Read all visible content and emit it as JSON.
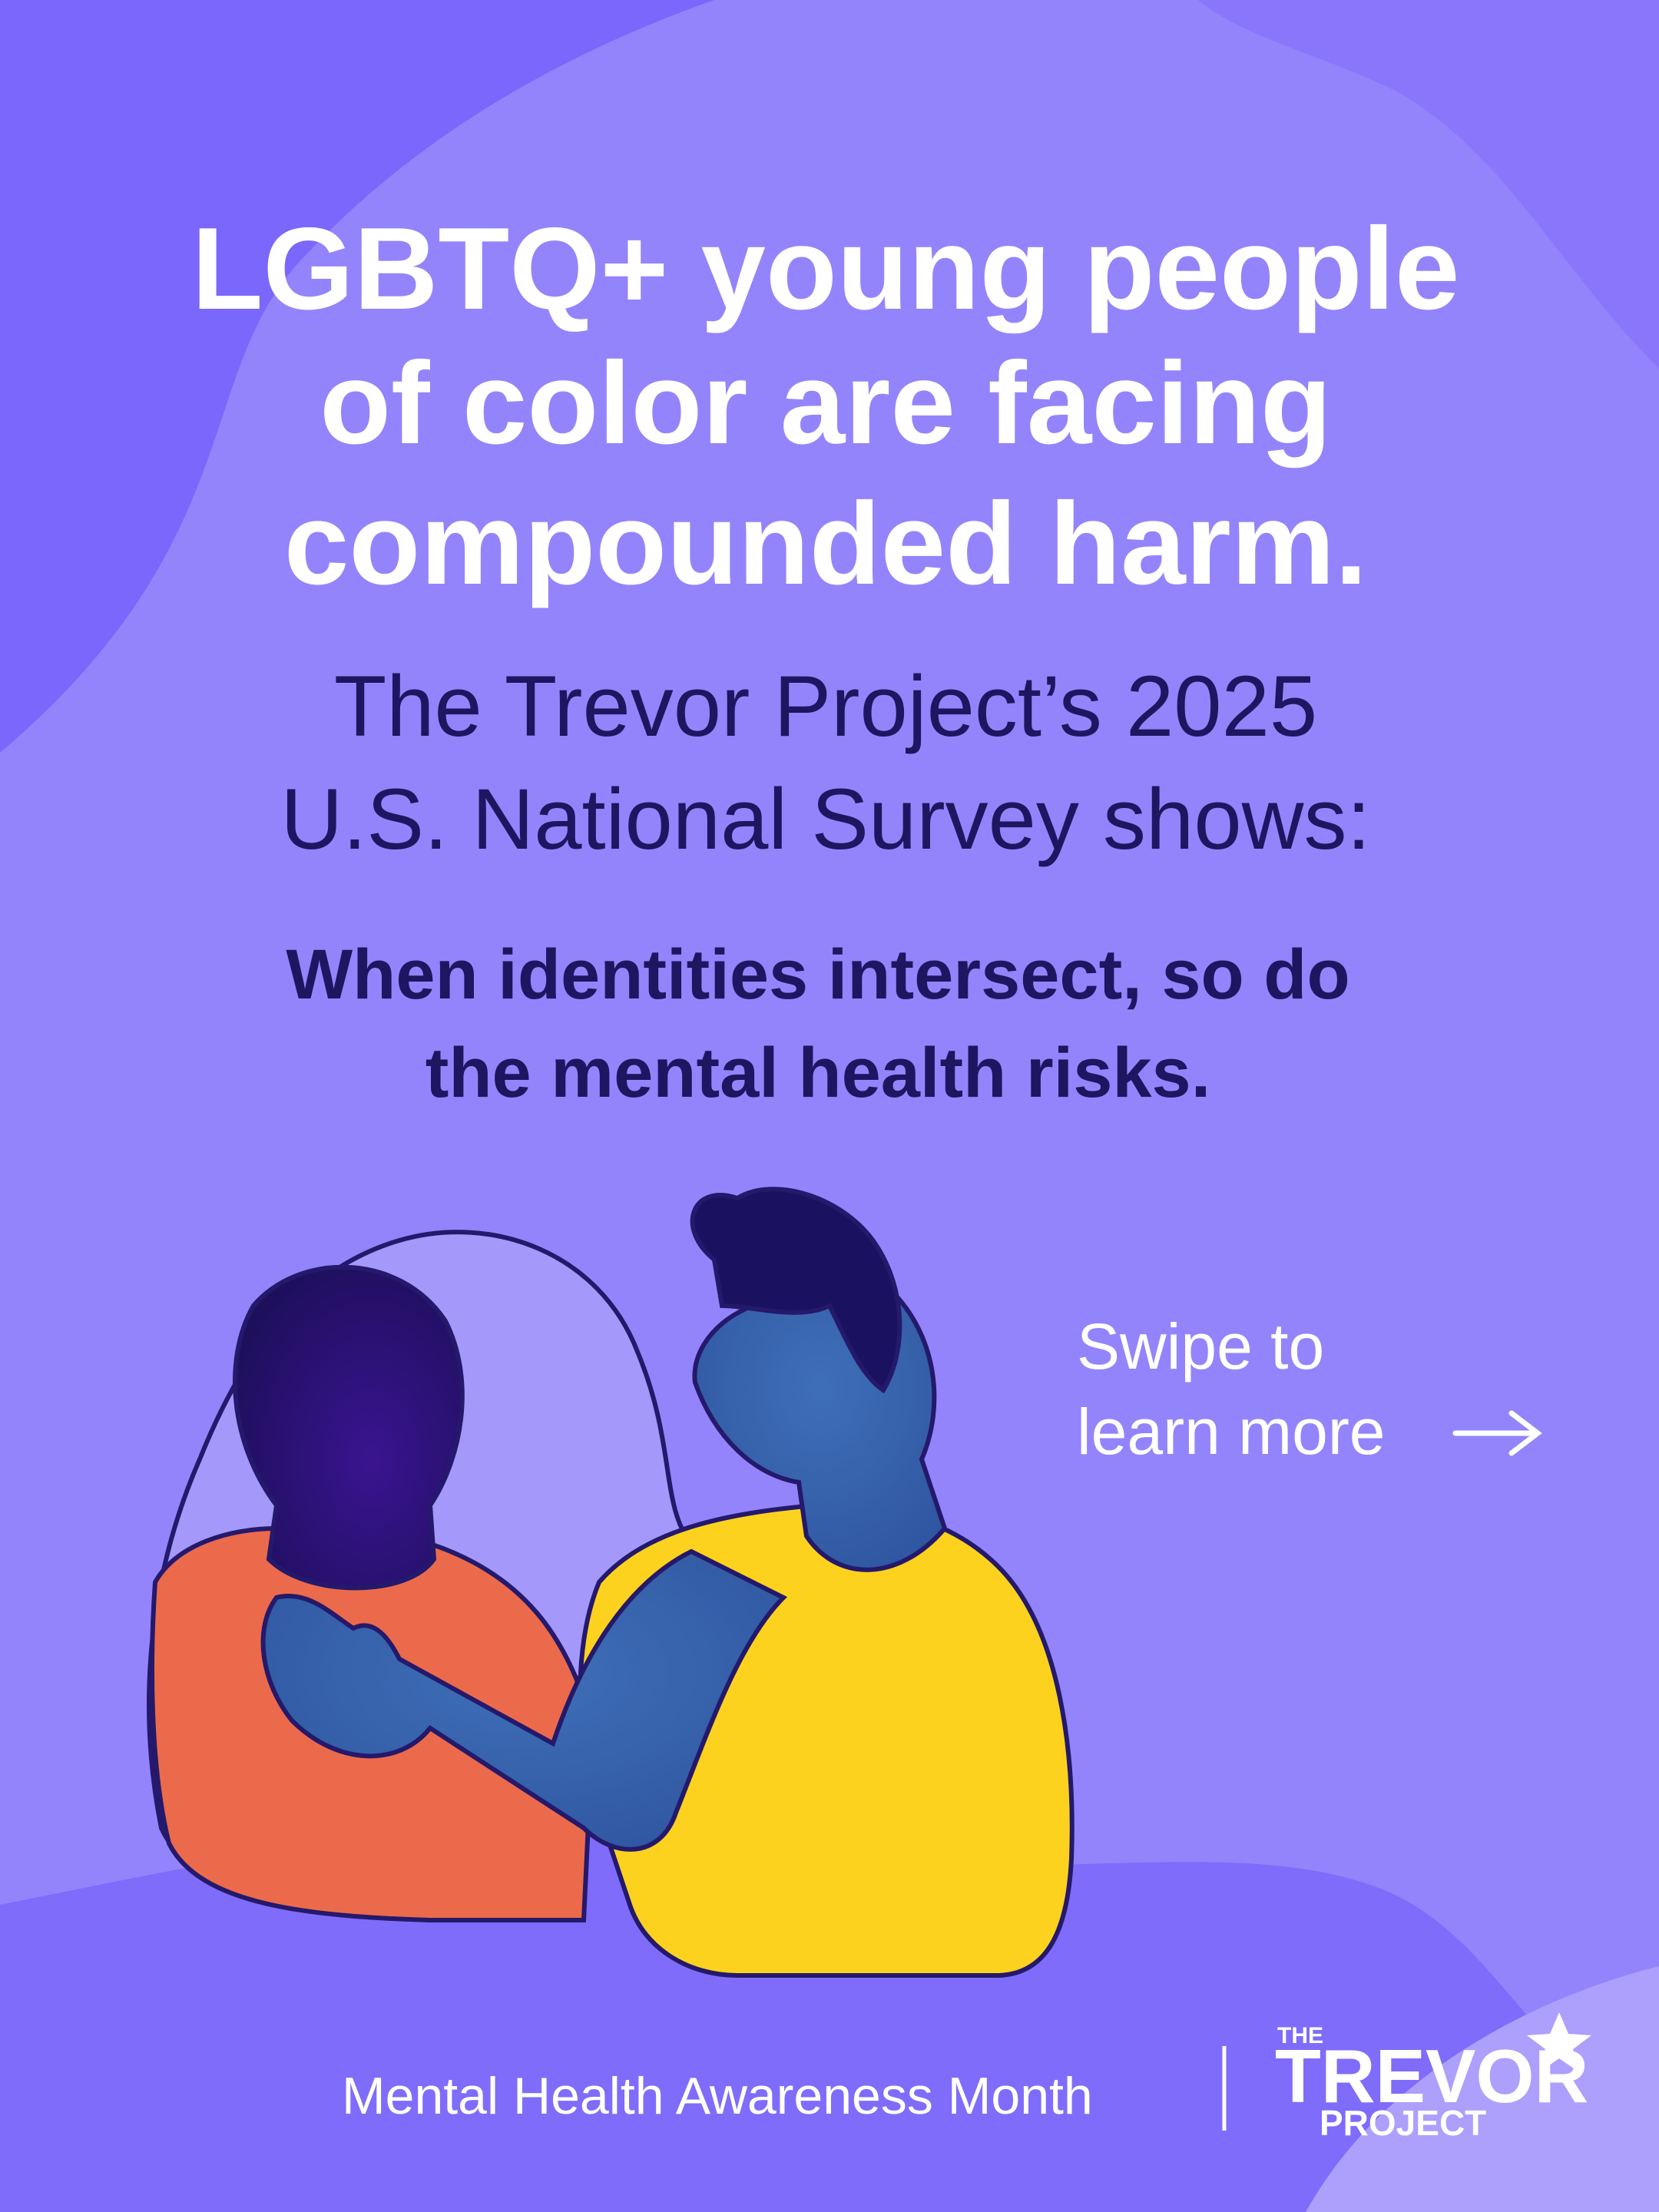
{
  "headline": {
    "lines": [
      "LGBTQ+ young people",
      "of color are facing",
      "compounded harm."
    ]
  },
  "subtitle": {
    "lines": [
      "The Trevor Project’s 2025",
      "U.S. National Survey shows:"
    ]
  },
  "statement": {
    "lines": [
      "When identities intersect, so do",
      "the mental health risks."
    ]
  },
  "swipe": {
    "lines": [
      "Swipe to",
      "learn more"
    ]
  },
  "footer": {
    "campaign": "Mental Health Awareness Month",
    "logo": {
      "top": "THE",
      "main": "TREVOR",
      "bottom": "PROJECT"
    }
  }
}
